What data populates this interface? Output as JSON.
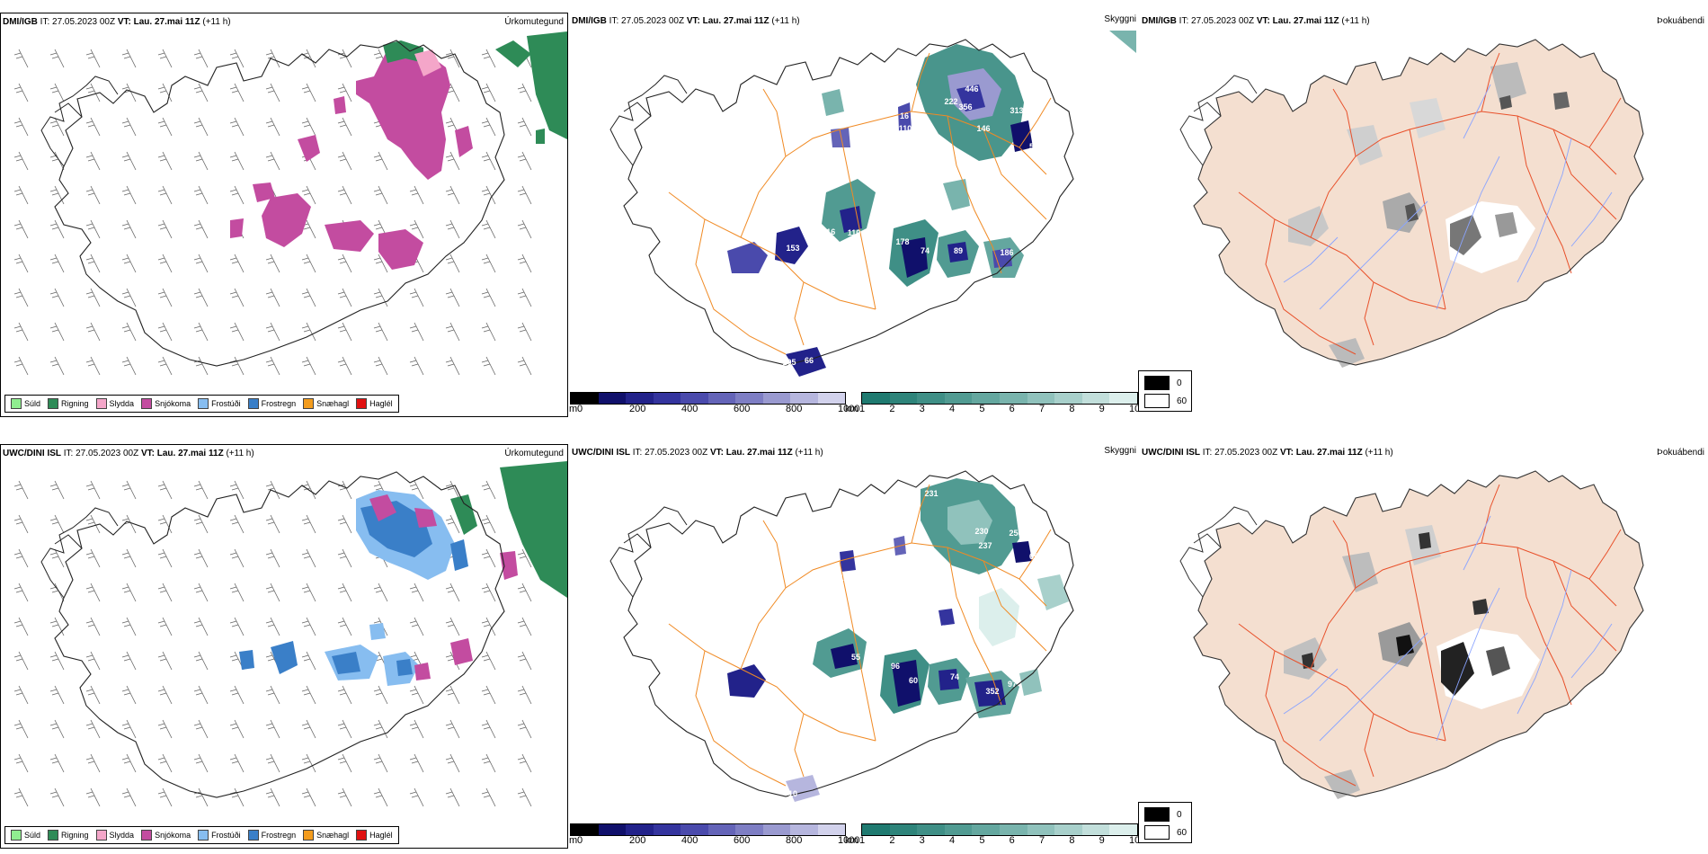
{
  "panels": [
    {
      "id": "p1",
      "model": "DMI/IGB",
      "it_label": "IT:",
      "it": "27.05.2023 00Z",
      "vt_label": "VT: Lau. 27.mai 11Z",
      "lead": "(+11 h)",
      "title": "Úrkomutegund"
    },
    {
      "id": "p2",
      "model": "DMI/IGB",
      "it_label": "IT:",
      "it": "27.05.2023 00Z",
      "vt_label": "VT: Lau. 27.mai 11Z",
      "lead": "(+11 h)",
      "title": "Skyggni"
    },
    {
      "id": "p3",
      "model": "DMI/IGB",
      "it_label": "IT:",
      "it": "27.05.2023 00Z",
      "vt_label": "VT: Lau. 27.mai 11Z",
      "lead": "(+11 h)",
      "title": "Þokuábendi"
    },
    {
      "id": "p4",
      "model": "UWC/DINI ISL",
      "it_label": "IT:",
      "it": "27.05.2023 00Z",
      "vt_label": "VT: Lau. 27.mai 11Z",
      "lead": "(+11 h)",
      "title": "Úrkomutegund"
    },
    {
      "id": "p5",
      "model": "UWC/DINI ISL",
      "it_label": "IT:",
      "it": "27.05.2023 00Z",
      "vt_label": "VT: Lau. 27.mai 11Z",
      "lead": "(+11 h)",
      "title": "Skyggni"
    },
    {
      "id": "p6",
      "model": "UWC/DINI ISL",
      "it_label": "IT:",
      "it": "27.05.2023 00Z",
      "vt_label": "VT: Lau. 27.mai 11Z",
      "lead": "(+11 h)",
      "title": "Þokuábendi"
    }
  ],
  "precip_legend": [
    {
      "label": "Súld",
      "color": "#90ee90"
    },
    {
      "label": "Rigning",
      "color": "#2e8b57"
    },
    {
      "label": "Slydda",
      "color": "#f4a6c9"
    },
    {
      "label": "Snjókoma",
      "color": "#c34ca0"
    },
    {
      "label": "Frostúði",
      "color": "#87bdf0"
    },
    {
      "label": "Frostregn",
      "color": "#3a7fc8"
    },
    {
      "label": "Snæhagl",
      "color": "#f39c1e"
    },
    {
      "label": "Haglél",
      "color": "#e01010"
    }
  ],
  "ceiling_scale": {
    "unit": "m",
    "ticks": [
      "0",
      "200",
      "400",
      "600",
      "800",
      "1000"
    ],
    "colors": [
      "#000000",
      "#10106b",
      "#22228a",
      "#34349e",
      "#4a4aac",
      "#6464b8",
      "#7e7ec4",
      "#9a9ad0",
      "#b6b6de",
      "#d2d2ec"
    ]
  },
  "visibility_scale": {
    "unit": "km",
    "ticks": [
      "1",
      "2",
      "3",
      "4",
      "5",
      "6",
      "7",
      "8",
      "9",
      "10"
    ],
    "colors": [
      "#1f7a70",
      "#2e847a",
      "#3f8f86",
      "#519b92",
      "#64a79f",
      "#79b4ad",
      "#90c2bc",
      "#a8d0cb",
      "#c2dfdb",
      "#dcefec"
    ]
  },
  "fog_legend": [
    {
      "label": "0",
      "color": "#000000"
    },
    {
      "label": "60",
      "color": "#ffffff"
    }
  ],
  "ceiling_max_labels_dmi": [
    "446",
    "356",
    "146",
    "313",
    "58",
    "222",
    "16",
    "110",
    "116",
    "153",
    "110",
    "178",
    "74",
    "89",
    "186",
    "105",
    "66",
    "51"
  ],
  "ceiling_max_labels_uwc": [
    "231",
    "230",
    "237",
    "256",
    "65",
    "81",
    "55",
    "96",
    "60",
    "74",
    "352",
    "97",
    "24",
    "93",
    "1",
    "10"
  ]
}
